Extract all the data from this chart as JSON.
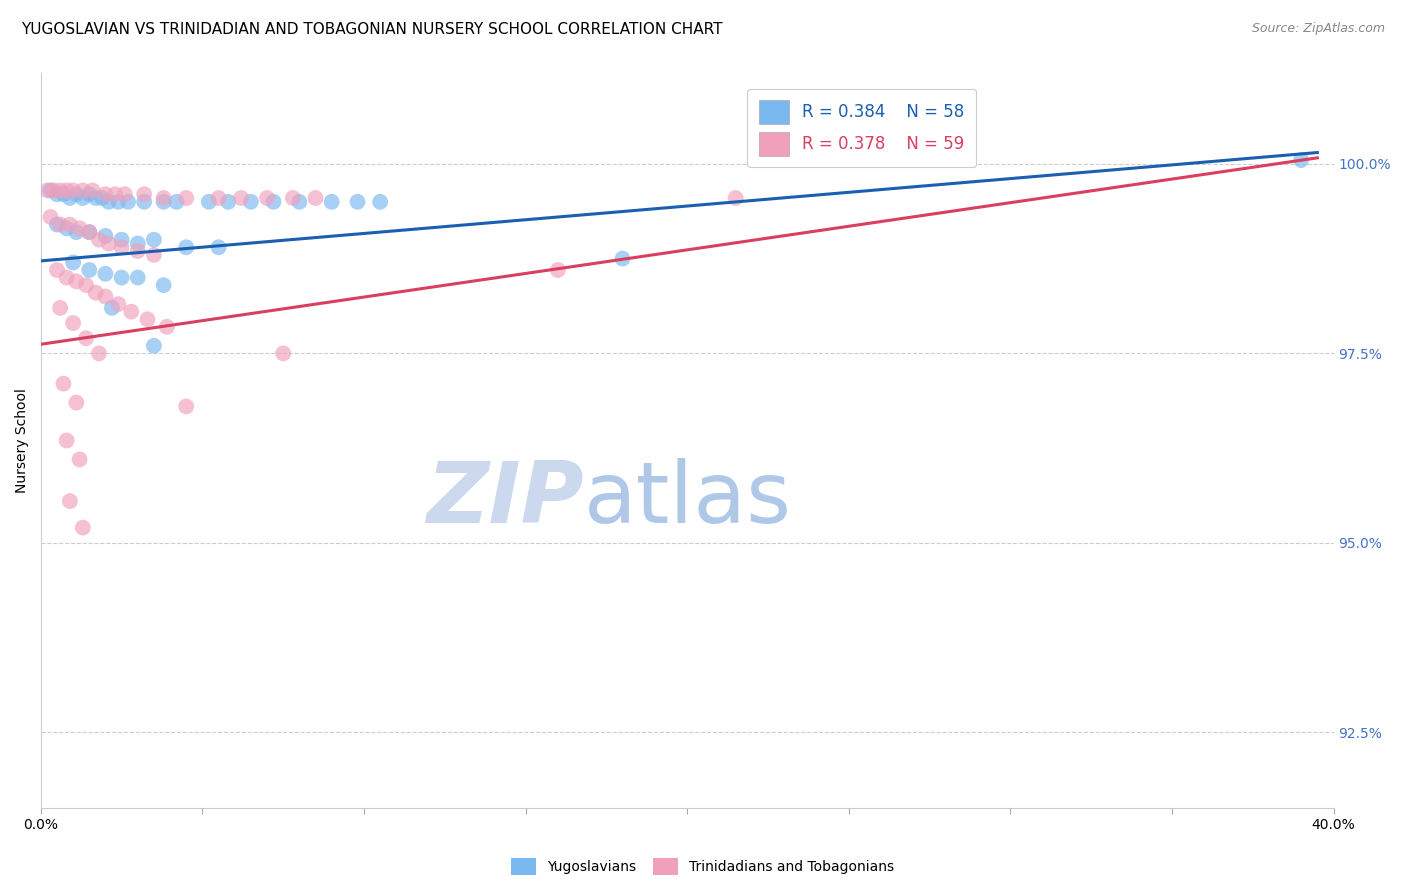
{
  "title": "YUGOSLAVIAN VS TRINIDADIAN AND TOBAGONIAN NURSERY SCHOOL CORRELATION CHART",
  "source": "Source: ZipAtlas.com",
  "ylabel": "Nursery School",
  "legend_blue": {
    "R": 0.384,
    "N": 58,
    "label": "Yugoslavians"
  },
  "legend_pink": {
    "R": 0.378,
    "N": 59,
    "label": "Trinidadians and Tobagonians"
  },
  "blue_scatter": [
    [
      0.3,
      99.65
    ],
    [
      0.5,
      99.6
    ],
    [
      0.7,
      99.6
    ],
    [
      0.9,
      99.55
    ],
    [
      1.1,
      99.6
    ],
    [
      1.3,
      99.55
    ],
    [
      1.5,
      99.6
    ],
    [
      1.7,
      99.55
    ],
    [
      1.9,
      99.55
    ],
    [
      2.1,
      99.5
    ],
    [
      2.4,
      99.5
    ],
    [
      2.7,
      99.5
    ],
    [
      3.2,
      99.5
    ],
    [
      3.8,
      99.5
    ],
    [
      4.2,
      99.5
    ],
    [
      5.2,
      99.5
    ],
    [
      5.8,
      99.5
    ],
    [
      6.5,
      99.5
    ],
    [
      7.2,
      99.5
    ],
    [
      8.0,
      99.5
    ],
    [
      9.0,
      99.5
    ],
    [
      9.8,
      99.5
    ],
    [
      10.5,
      99.5
    ],
    [
      0.5,
      99.2
    ],
    [
      0.8,
      99.15
    ],
    [
      1.1,
      99.1
    ],
    [
      1.5,
      99.1
    ],
    [
      2.0,
      99.05
    ],
    [
      2.5,
      99.0
    ],
    [
      3.0,
      98.95
    ],
    [
      3.5,
      99.0
    ],
    [
      4.5,
      98.9
    ],
    [
      5.5,
      98.9
    ],
    [
      1.0,
      98.7
    ],
    [
      1.5,
      98.6
    ],
    [
      2.0,
      98.55
    ],
    [
      2.5,
      98.5
    ],
    [
      3.0,
      98.5
    ],
    [
      3.8,
      98.4
    ],
    [
      2.2,
      98.1
    ],
    [
      3.5,
      97.6
    ],
    [
      18.0,
      98.75
    ],
    [
      39.0,
      100.05
    ]
  ],
  "pink_scatter": [
    [
      0.2,
      99.65
    ],
    [
      0.4,
      99.65
    ],
    [
      0.6,
      99.65
    ],
    [
      0.8,
      99.65
    ],
    [
      1.0,
      99.65
    ],
    [
      1.3,
      99.65
    ],
    [
      1.6,
      99.65
    ],
    [
      2.0,
      99.6
    ],
    [
      2.3,
      99.6
    ],
    [
      2.6,
      99.6
    ],
    [
      3.2,
      99.6
    ],
    [
      3.8,
      99.55
    ],
    [
      4.5,
      99.55
    ],
    [
      5.5,
      99.55
    ],
    [
      6.2,
      99.55
    ],
    [
      7.0,
      99.55
    ],
    [
      7.8,
      99.55
    ],
    [
      8.5,
      99.55
    ],
    [
      0.3,
      99.3
    ],
    [
      0.6,
      99.2
    ],
    [
      0.9,
      99.2
    ],
    [
      1.2,
      99.15
    ],
    [
      1.5,
      99.1
    ],
    [
      1.8,
      99.0
    ],
    [
      2.1,
      98.95
    ],
    [
      2.5,
      98.9
    ],
    [
      3.0,
      98.85
    ],
    [
      3.5,
      98.8
    ],
    [
      0.5,
      98.6
    ],
    [
      0.8,
      98.5
    ],
    [
      1.1,
      98.45
    ],
    [
      1.4,
      98.4
    ],
    [
      1.7,
      98.3
    ],
    [
      2.0,
      98.25
    ],
    [
      2.4,
      98.15
    ],
    [
      2.8,
      98.05
    ],
    [
      3.3,
      97.95
    ],
    [
      3.9,
      97.85
    ],
    [
      0.6,
      98.1
    ],
    [
      1.0,
      97.9
    ],
    [
      1.4,
      97.7
    ],
    [
      1.8,
      97.5
    ],
    [
      0.7,
      97.1
    ],
    [
      1.1,
      96.85
    ],
    [
      0.8,
      96.35
    ],
    [
      1.2,
      96.1
    ],
    [
      0.9,
      95.55
    ],
    [
      1.3,
      95.2
    ],
    [
      4.5,
      96.8
    ],
    [
      7.5,
      97.5
    ],
    [
      16.0,
      98.6
    ],
    [
      21.5,
      99.55
    ]
  ],
  "blue_line": {
    "x0": 0.0,
    "y0": 98.72,
    "x1": 39.5,
    "y1": 100.15
  },
  "pink_line": {
    "x0": 0.0,
    "y0": 97.62,
    "x1": 39.5,
    "y1": 100.08
  },
  "xlim": [
    0,
    40
  ],
  "ylim": [
    91.5,
    101.2
  ],
  "yticks": [
    92.5,
    95.0,
    97.5,
    100.0
  ],
  "blue_color": "#7ab8f0",
  "pink_color": "#f0a0ba",
  "blue_line_color": "#1a5fb0",
  "pink_line_color": "#d94060",
  "right_axis_color": "#4472c4",
  "watermark_zip_color": "#ccd8ee",
  "watermark_atlas_color": "#b0c8e8",
  "title_fontsize": 11,
  "source_fontsize": 9
}
